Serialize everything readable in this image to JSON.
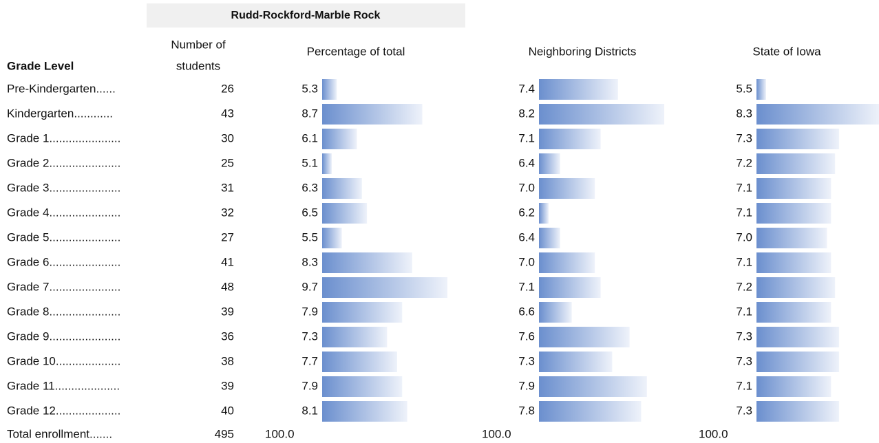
{
  "header": {
    "district": "Rudd-Rockford-Marble Rock",
    "grade_level": "Grade Level",
    "number_of_students": [
      "Number of",
      "students"
    ],
    "percentage_of_total": "Percentage of total",
    "neighboring": "Neighboring Districts",
    "state": "State of Iowa"
  },
  "table": {
    "rows": [
      [
        "Pre-Kindergarten......",
        "26",
        "5.3",
        "7.4",
        "5.5"
      ],
      [
        "Kindergarten............",
        "43",
        "8.7",
        "8.2",
        "8.3"
      ],
      [
        "Grade 1......................",
        "30",
        "6.1",
        "7.1",
        "7.3"
      ],
      [
        "Grade 2......................",
        "25",
        "5.1",
        "6.4",
        "7.2"
      ],
      [
        "Grade 3......................",
        "31",
        "6.3",
        "7.0",
        "7.1"
      ],
      [
        "Grade 4......................",
        "32",
        "6.5",
        "6.2",
        "7.1"
      ],
      [
        "Grade 5......................",
        "27",
        "5.5",
        "6.4",
        "7.0"
      ],
      [
        "Grade 6......................",
        "41",
        "8.3",
        "7.0",
        "7.1"
      ],
      [
        "Grade 7......................",
        "48",
        "9.7",
        "7.1",
        "7.2"
      ],
      [
        "Grade 8......................",
        "39",
        "7.9",
        "6.6",
        "7.1"
      ],
      [
        "Grade 9......................",
        "36",
        "7.3",
        "7.6",
        "7.3"
      ],
      [
        "Grade 10....................",
        "38",
        "7.7",
        "7.3",
        "7.3"
      ],
      [
        "Grade 11....................",
        "39",
        "7.9",
        "7.9",
        "7.1"
      ],
      [
        "Grade 12....................",
        "40",
        "8.1",
        "7.8",
        "7.3"
      ]
    ],
    "total": [
      "Total enrollment.......",
      "495",
      "100.0",
      "100.0",
      "100.0"
    ]
  }
}
